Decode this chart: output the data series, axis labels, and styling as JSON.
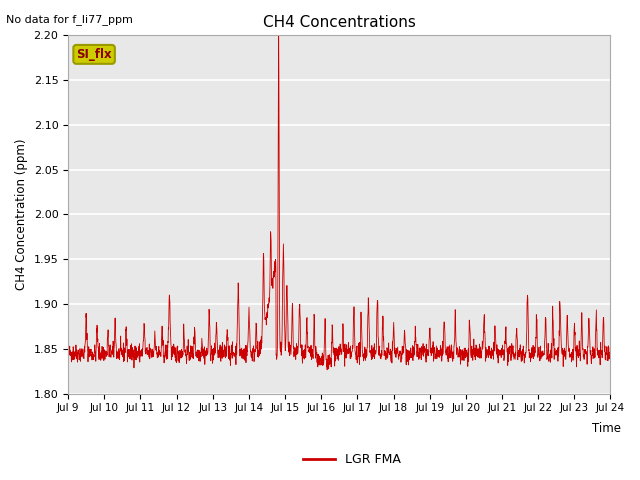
{
  "title": "CH4 Concentrations",
  "xlabel": "Time",
  "ylabel": "CH4 Concentration (ppm)",
  "top_left_text": "No data for f_li77_ppm",
  "legend_label": "LGR FMA",
  "line_color": "#cc0000",
  "ylim": [
    1.8,
    2.2
  ],
  "yticks": [
    1.8,
    1.85,
    1.9,
    1.95,
    2.0,
    2.05,
    2.1,
    2.15,
    2.2
  ],
  "xtick_labels": [
    "Jul 9",
    "Jul 10",
    "Jul 11",
    "Jul 12",
    "Jul 13",
    "Jul 14",
    "Jul 15",
    "Jul 16",
    "Jul 17",
    "Jul 18",
    "Jul 19",
    "Jul 20",
    "Jul 21",
    "Jul 22",
    "Jul 23",
    "Jul 24"
  ],
  "bg_color": "#e8e8e8",
  "fig_color": "#ffffff",
  "annotation_text": "SI_flx",
  "annotation_bg": "#cccc00",
  "annotation_border": "#999900"
}
